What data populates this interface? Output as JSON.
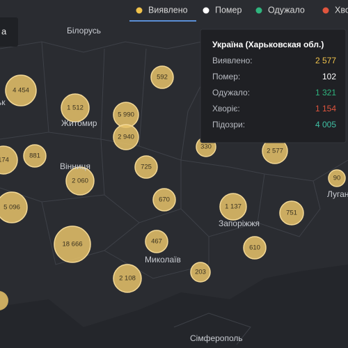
{
  "tabs": [
    {
      "label": "Виявлено",
      "color": "#f0c24b"
    },
    {
      "label": "Помер",
      "color": "#ffffff"
    },
    {
      "label": "Одужало",
      "color": "#2fb57e"
    },
    {
      "label": "Хворі",
      "color": "#e0553e"
    }
  ],
  "corner_label": "а",
  "place_labels": [
    "Білорусь",
    "ьк",
    "Житомир",
    "Вінниця",
    "Запоріжжя",
    "Миколаїв",
    "Луган",
    "Сімферополь"
  ],
  "bubbles": [
    "4 454",
    "1 512",
    "592",
    "5 990",
    "2 940",
    "174",
    "881",
    "2 060",
    "725",
    "330",
    "2 577",
    "90",
    "5 096",
    "670",
    "1 137",
    "751",
    "18 666",
    "467",
    "610",
    "2 108",
    "203"
  ],
  "tooltip": {
    "title": "Україна (Харьковская обл.)",
    "rows": [
      {
        "label": "Виявлено:",
        "value": "2 577",
        "color": "#f0c24b"
      },
      {
        "label": "Помер:",
        "value": "102",
        "color": "#ffffff"
      },
      {
        "label": "Одужало:",
        "value": "1 321",
        "color": "#2fb57e"
      },
      {
        "label": "Хворіє:",
        "value": "1 154",
        "color": "#e0553e"
      },
      {
        "label": "Підозри:",
        "value": "4 005",
        "color": "#3fc1a5"
      }
    ]
  }
}
